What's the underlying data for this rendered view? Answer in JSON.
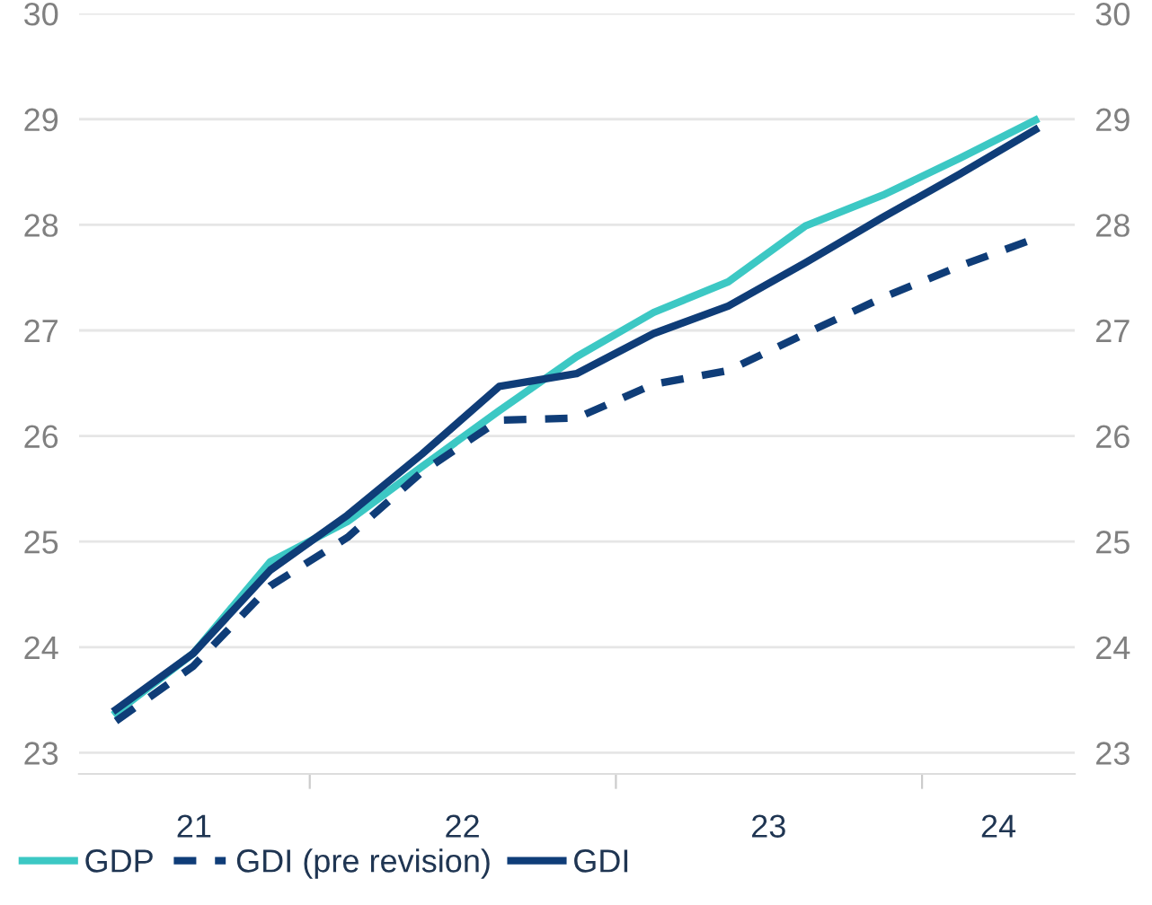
{
  "chart_data": {
    "type": "line",
    "x": [
      "2021-05-15",
      "2021-08-15",
      "2021-11-15",
      "2022-02-15",
      "2022-05-15",
      "2022-08-15",
      "2022-11-15",
      "2023-02-15",
      "2023-05-15",
      "2023-08-15",
      "2023-11-15",
      "2024-02-15",
      "2024-05-15"
    ],
    "series": [
      {
        "name": "GDP",
        "color": "#3cc8c4",
        "line_style": "solid",
        "values": [
          23.38,
          23.94,
          24.81,
          25.19,
          25.71,
          26.24,
          26.75,
          27.17,
          27.46,
          27.99,
          28.28,
          28.63,
          28.99
        ]
      },
      {
        "name": "GDI (pre revision)",
        "color": "#0f3d78",
        "line_style": "dashed",
        "values": [
          23.3,
          23.82,
          24.58,
          25.04,
          25.66,
          26.15,
          26.17,
          26.49,
          26.62,
          26.97,
          27.31,
          27.61,
          27.87
        ]
      },
      {
        "name": "GDI",
        "color": "#0f3d78",
        "line_style": "solid",
        "values": [
          23.41,
          23.94,
          24.73,
          25.25,
          25.83,
          26.47,
          26.59,
          26.97,
          27.23,
          27.64,
          28.07,
          28.48,
          28.9
        ]
      }
    ],
    "xlim": [
      "2021-04-01",
      "2024-07-01"
    ],
    "xticks": [
      {
        "value": "2021-08-16",
        "label": "21"
      },
      {
        "value": "2022-07-02",
        "label": "22"
      },
      {
        "value": "2023-07-02",
        "label": "23"
      },
      {
        "value": "2024-04-01",
        "label": "24"
      },
      {
        "value": "2022-01-01",
        "label": null
      },
      {
        "value": "2023-01-01",
        "label": null
      },
      {
        "value": "2024-01-01",
        "label": null
      }
    ],
    "ylim": [
      22.8,
      30
    ],
    "yticks": [
      23,
      24,
      25,
      26,
      27,
      28,
      29,
      30
    ],
    "y2lim": [
      22.8,
      30
    ],
    "y2ticks": [
      23,
      24,
      25,
      26,
      27,
      28,
      29,
      30
    ],
    "grid": "y",
    "legend": "bottom left"
  }
}
